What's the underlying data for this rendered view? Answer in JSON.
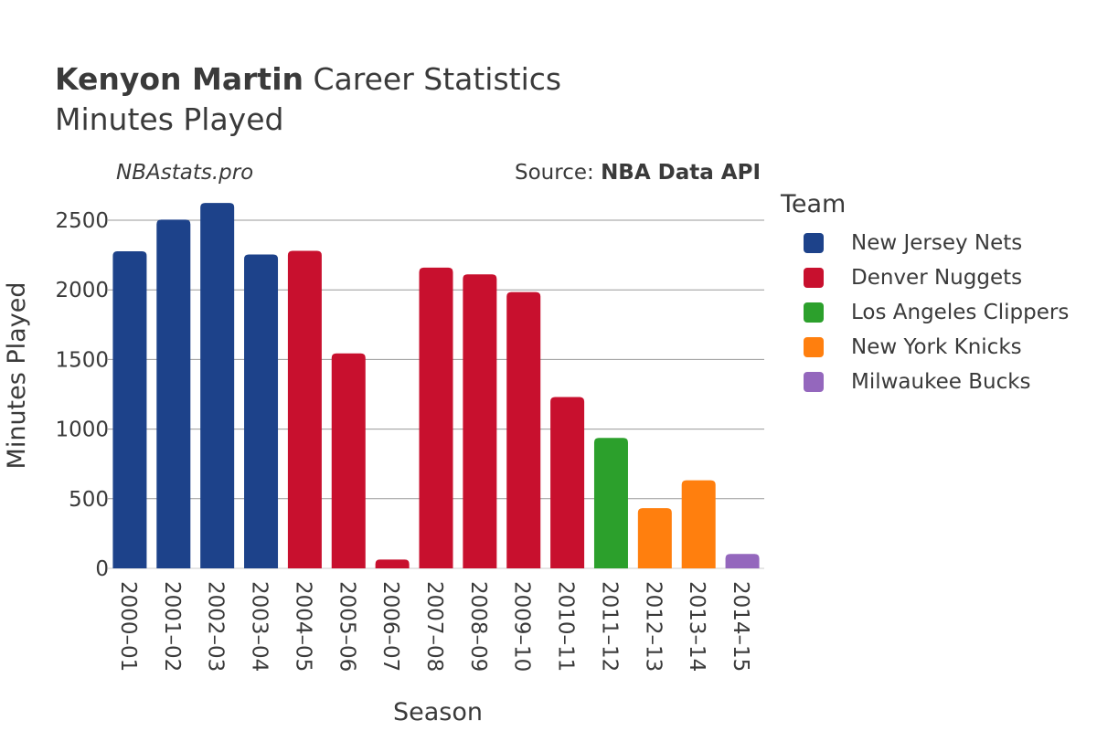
{
  "header": {
    "player": "Kenyon Martin",
    "title_rest": " Career Statistics",
    "subtitle": "Minutes Played",
    "watermark": "NBAstats.pro",
    "source_prefix": "Source: ",
    "source_name": "NBA Data API"
  },
  "legend": {
    "title": "Team",
    "items": [
      {
        "label": "New Jersey Nets",
        "color": "#1d428a"
      },
      {
        "label": "Denver Nuggets",
        "color": "#c8102e"
      },
      {
        "label": "Los Angeles Clippers",
        "color": "#2ca02c"
      },
      {
        "label": "New York Knicks",
        "color": "#ff7f0e"
      },
      {
        "label": "Milwaukee Bucks",
        "color": "#9467bd"
      }
    ]
  },
  "chart_data": {
    "type": "bar",
    "title": "Kenyon Martin Career Statistics",
    "subtitle": "Minutes Played",
    "xlabel": "Season",
    "ylabel": "Minutes Played",
    "ylim": [
      0,
      2700
    ],
    "yticks": [
      0,
      500,
      1000,
      1500,
      2000,
      2500
    ],
    "grid": true,
    "legend_position": "right",
    "categories": [
      "2000–01",
      "2001–02",
      "2002–03",
      "2003–04",
      "2004–05",
      "2005–06",
      "2006–07",
      "2007–08",
      "2008–09",
      "2009–10",
      "2010–11",
      "2011–12",
      "2012–13",
      "2013–14",
      "2014–15"
    ],
    "values": [
      2277,
      2504,
      2624,
      2254,
      2280,
      1544,
      63,
      2160,
      2111,
      1984,
      1230,
      937,
      432,
      632,
      103
    ],
    "teams": [
      "New Jersey Nets",
      "New Jersey Nets",
      "New Jersey Nets",
      "New Jersey Nets",
      "Denver Nuggets",
      "Denver Nuggets",
      "Denver Nuggets",
      "Denver Nuggets",
      "Denver Nuggets",
      "Denver Nuggets",
      "Denver Nuggets",
      "Los Angeles Clippers",
      "New York Knicks",
      "New York Knicks",
      "Milwaukee Bucks"
    ]
  }
}
